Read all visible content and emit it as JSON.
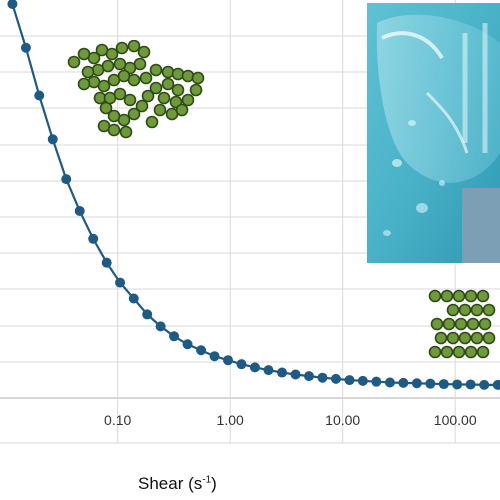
{
  "chart_data": {
    "type": "line",
    "xscale": "log",
    "xlabel": "Shear (s⁻¹)",
    "ylabel": "",
    "title": "",
    "xticks": [
      "0.10",
      "1.00",
      "10.00",
      "100.00"
    ],
    "xlim": [
      0.009,
      250
    ],
    "ylim": [
      0,
      1
    ],
    "grid": true,
    "series": [
      {
        "color": "#1f5a82",
        "marker": "circle",
        "x": [
          0.0116,
          0.0153,
          0.0201,
          0.0265,
          0.0349,
          0.046,
          0.0606,
          0.0799,
          0.105,
          0.139,
          0.183,
          0.241,
          0.317,
          0.418,
          0.551,
          0.726,
          0.957,
          1.26,
          1.66,
          2.19,
          2.89,
          3.81,
          5.02,
          6.61,
          8.71,
          11.5,
          15.1,
          19.9,
          26.3,
          34.6,
          45.6,
          60.1,
          79.2,
          104,
          137,
          181,
          239
        ],
        "y": [
          0.99,
          0.88,
          0.76,
          0.65,
          0.55,
          0.47,
          0.4,
          0.34,
          0.29,
          0.25,
          0.21,
          0.18,
          0.155,
          0.135,
          0.12,
          0.105,
          0.095,
          0.085,
          0.077,
          0.07,
          0.064,
          0.059,
          0.055,
          0.051,
          0.048,
          0.045,
          0.043,
          0.041,
          0.039,
          0.038,
          0.037,
          0.036,
          0.035,
          0.034,
          0.034,
          0.033,
          0.033
        ]
      }
    ]
  }
}
